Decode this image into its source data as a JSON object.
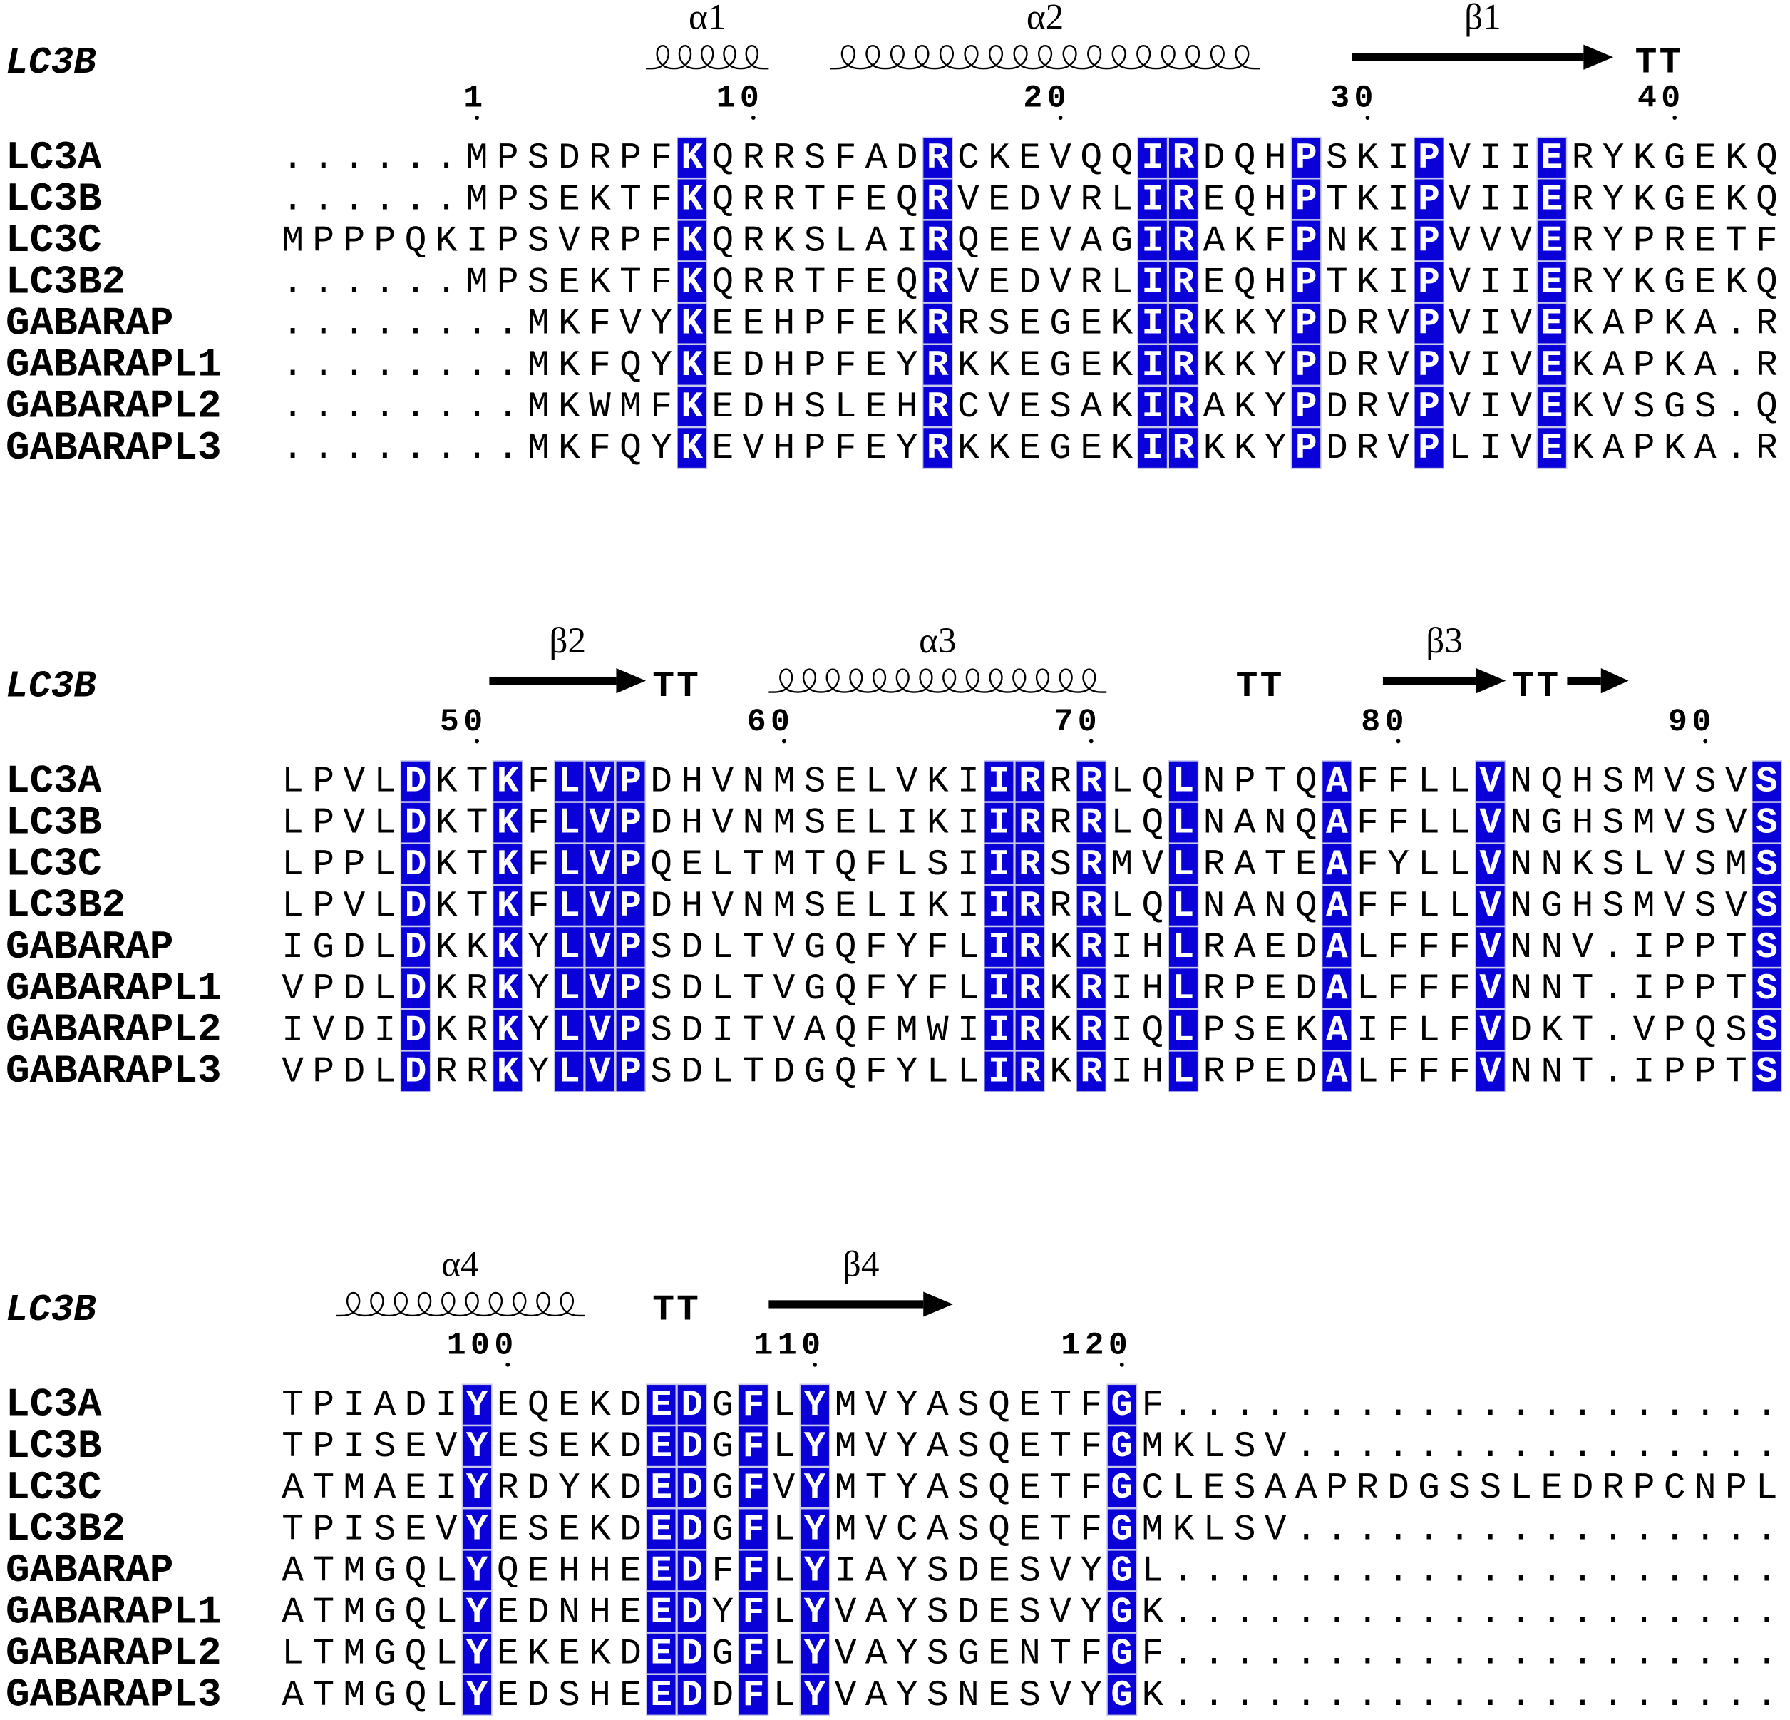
{
  "blocks": [
    {
      "reference": "LC3B",
      "secondary_structure": [
        {
          "type": "helix",
          "label": "α1"
        },
        {
          "type": "helix",
          "label": "α2"
        },
        {
          "type": "strand",
          "label": "β1"
        },
        {
          "type": "turn",
          "label": "TT"
        }
      ],
      "numbering": [
        1,
        10,
        20,
        30,
        40
      ],
      "rows": [
        {
          "name": "LC3A",
          "sequence": "......MPSDRPFKQRRSFADRCKEVQQIRDQHPSKIPVIIERYKGEKQ"
        },
        {
          "name": "LC3B",
          "sequence": "......MPSEKTFKQRRTFEQRVEDVRLIREQHPTKIPVIIERYKGEKQ"
        },
        {
          "name": "LC3C",
          "sequence": "MPPPQKIPSVRPFKQRKSLAIRQEEVAGIRAKFPNKIPVVVERYPRETF"
        },
        {
          "name": "LC3B2",
          "sequence": "......MPSEKTFKQRRTFEQRVEDVRLIREQHPTKIPVIIERYKGEKQ"
        },
        {
          "name": "GABARAP",
          "sequence": "........MKFVYKEEHPFEKRRSEGEKIRKKYPDRVPVIVEKAPKA.R"
        },
        {
          "name": "GABARAPL1",
          "sequence": "........MKFQYKEDHPFEYRKKEGEKIRKKYPDRVPVIVEKAPKA.R"
        },
        {
          "name": "GABARAPL2",
          "sequence": "........MKWMFKEDHSLEHRCVESAKIRAKYPDRVPVIVEKVSGS.Q"
        },
        {
          "name": "GABARAPL3",
          "sequence": "........MKFQYKEVHPFEYRKKEGEKIRKKYPDRVPLIVEKAPKA.R"
        }
      ]
    },
    {
      "reference": "LC3B",
      "secondary_structure": [
        {
          "type": "strand",
          "label": "β2"
        },
        {
          "type": "turn",
          "label": "TT"
        },
        {
          "type": "helix",
          "label": "α3"
        },
        {
          "type": "turn",
          "label": "TT"
        },
        {
          "type": "strand",
          "label": "β3"
        },
        {
          "type": "turn",
          "label": "TT"
        },
        {
          "type": "strand"
        }
      ],
      "numbering": [
        50,
        60,
        70,
        80,
        90
      ],
      "rows": [
        {
          "name": "LC3A",
          "sequence": "LPVLDKTKFLVPDHVNMSELVKIIRRRLQLNPTQAFFLLVNQHSMVSVS"
        },
        {
          "name": "LC3B",
          "sequence": "LPVLDKTKFLVPDHVNMSELIKIIRRRLQLNANQAFFLLVNGHSMVSVS"
        },
        {
          "name": "LC3C",
          "sequence": "LPPLDKTKFLVPQELTMTQFLSIIRSRMVLRATEAFYLLVNNKSLVSMS"
        },
        {
          "name": "LC3B2",
          "sequence": "LPVLDKTKFLVPDHVNMSELIKIIRRRLQLNANQAFFLLVNGHSMVSVS"
        },
        {
          "name": "GABARAP",
          "sequence": "IGDLDKKKYLVPSDLTVGQFYFLIRKRIHLRAEDALFFFVNNV.IPPTS"
        },
        {
          "name": "GABARAPL1",
          "sequence": "VPDLDKRKYLVPSDLTVGQFYFLIRKRIHLRPEDALFFFVNNT.IPPTS"
        },
        {
          "name": "GABARAPL2",
          "sequence": "IVDIDKRKYLVPSDITVAQFMWIIRKRIQLPSEKAIFLFVDKT.VPQSS"
        },
        {
          "name": "GABARAPL3",
          "sequence": "VPDLDRRKYLVPSDLTDGQFYLLIRKRIHLRPEDALFFFVNNT.IPPTS"
        }
      ]
    },
    {
      "reference": "LC3B",
      "secondary_structure": [
        {
          "type": "helix",
          "label": "α4"
        },
        {
          "type": "turn",
          "label": "TT"
        },
        {
          "type": "strand",
          "label": "β4"
        }
      ],
      "numbering": [
        100,
        110,
        120
      ],
      "rows": [
        {
          "name": "LC3A",
          "sequence": "TPIADIYEQEKDEDGFLYMVYASQETFGF...................."
        },
        {
          "name": "LC3B",
          "sequence": "TPISEVYESEKDEDGFLYMVYASQETFGMKLSV................"
        },
        {
          "name": "LC3C",
          "sequence": "ATMAEIYRDYKDEDGFVYMTYASQETFGCLESAAPRDGSSLEDRPCNPL"
        },
        {
          "name": "LC3B2",
          "sequence": "TPISEVYESEKDEDGFLYMVCASQETFGMKLSV................"
        },
        {
          "name": "GABARAP",
          "sequence": "ATMGQLYQEHHEEDFFLYIAYSDESVYGL...................."
        },
        {
          "name": "GABARAPL1",
          "sequence": "ATMGQLYEDNHEEDYFLYVAYSDESVYGK...................."
        },
        {
          "name": "GABARAPL2",
          "sequence": "LTMGQLYEKEKDEDGFLYVAYSGENTFGF...................."
        },
        {
          "name": "GABARAPL3",
          "sequence": "ATMGQLYEDSHEEDDFLYVAYSNESVYGK...................."
        }
      ]
    }
  ]
}
